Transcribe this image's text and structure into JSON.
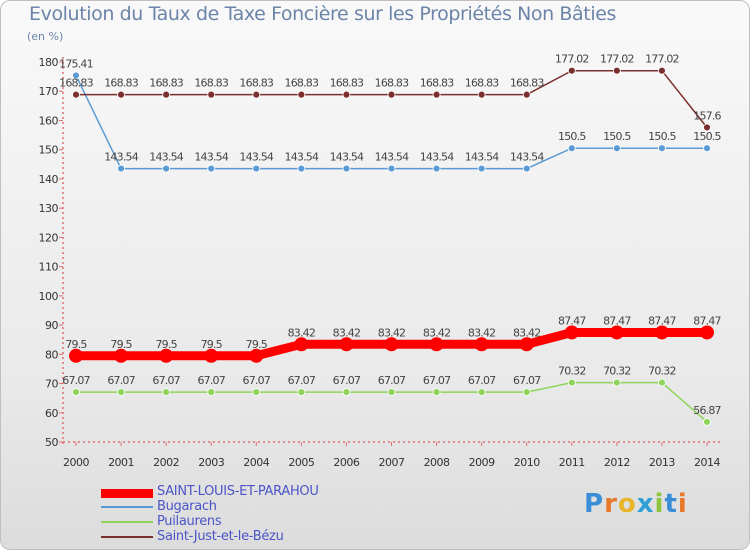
{
  "title": "Evolution du Taux de Taxe Foncière sur les Propriétés Non Bâties",
  "unit": "(en %)",
  "logo": "Proxiti",
  "chart_data": {
    "type": "line",
    "title": "Evolution du Taux de Taxe Foncière sur les Propriétés Non Bâties",
    "xlabel": "",
    "ylabel": "(en %)",
    "ylim": [
      50,
      180
    ],
    "yticks": [
      50,
      60,
      70,
      80,
      90,
      100,
      110,
      120,
      130,
      140,
      150,
      160,
      170,
      180
    ],
    "categories": [
      "2000",
      "2001",
      "2002",
      "2003",
      "2004",
      "2005",
      "2006",
      "2007",
      "2008",
      "2009",
      "2010",
      "2011",
      "2012",
      "2013",
      "2014"
    ],
    "series": [
      {
        "name": "SAINT-LOUIS-ET-PARAHOU",
        "color": "#ff0000",
        "highlight": true,
        "values": [
          79.5,
          79.5,
          79.5,
          79.5,
          79.5,
          83.42,
          83.42,
          83.42,
          83.42,
          83.42,
          83.42,
          87.47,
          87.47,
          87.47,
          87.47
        ],
        "labels": [
          "79.5",
          "79.5",
          "79.5",
          "79.5",
          "79.5",
          "83.42",
          "83.42",
          "83.42",
          "83.42",
          "83.42",
          "83.42",
          "87.47",
          "87.47",
          "87.47",
          "87.47"
        ]
      },
      {
        "name": "Bugarach",
        "color": "#5b9bd5",
        "highlight": false,
        "values": [
          175.41,
          143.54,
          143.54,
          143.54,
          143.54,
          143.54,
          143.54,
          143.54,
          143.54,
          143.54,
          143.54,
          150.5,
          150.5,
          150.5,
          150.5
        ],
        "labels": [
          "175.41",
          "143.54",
          "143.54",
          "143.54",
          "143.54",
          "143.54",
          "143.54",
          "143.54",
          "143.54",
          "143.54",
          "143.54",
          "150.5",
          "150.5",
          "150.5",
          "150.5"
        ]
      },
      {
        "name": "Puilaurens",
        "color": "#8ed45b",
        "highlight": false,
        "values": [
          67.07,
          67.07,
          67.07,
          67.07,
          67.07,
          67.07,
          67.07,
          67.07,
          67.07,
          67.07,
          67.07,
          70.32,
          70.32,
          70.32,
          56.87
        ],
        "labels": [
          "67.07",
          "67.07",
          "67.07",
          "67.07",
          "67.07",
          "67.07",
          "67.07",
          "67.07",
          "67.07",
          "67.07",
          "67.07",
          "70.32",
          "70.32",
          "70.32",
          "56.87"
        ]
      },
      {
        "name": "Saint-Just-et-le-Bézu",
        "color": "#7b2e2e",
        "highlight": false,
        "values": [
          168.83,
          168.83,
          168.83,
          168.83,
          168.83,
          168.83,
          168.83,
          168.83,
          168.83,
          168.83,
          168.83,
          177.02,
          177.02,
          177.02,
          157.6
        ],
        "labels": [
          "168.83",
          "168.83",
          "168.83",
          "168.83",
          "168.83",
          "168.83",
          "168.83",
          "168.83",
          "168.83",
          "168.83",
          "168.83",
          "177.02",
          "177.02",
          "177.02",
          "157.6"
        ]
      }
    ]
  }
}
